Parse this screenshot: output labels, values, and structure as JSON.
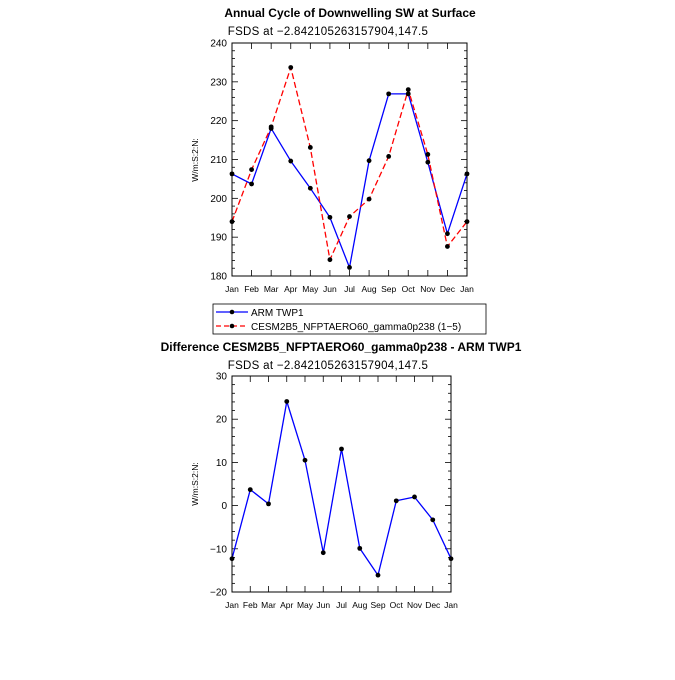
{
  "chart_data": [
    {
      "type": "line",
      "title": "Annual Cycle of Downwelling SW at Surface",
      "subtitle": "FSDS at −2.842105263157904,147.5",
      "ylabel": "W/m:S:2:N:",
      "categories": [
        "Jan",
        "Feb",
        "Mar",
        "Apr",
        "May",
        "Jun",
        "Jul",
        "Aug",
        "Sep",
        "Oct",
        "Nov",
        "Dec",
        "Jan"
      ],
      "ylim": [
        180,
        240
      ],
      "yticks": [
        180,
        190,
        200,
        210,
        220,
        230,
        240
      ],
      "legend_placement": "below",
      "series": [
        {
          "name": "ARM TWP1",
          "color": "#0000ff",
          "dash": "solid",
          "values": [
            206.3,
            203.7,
            218.0,
            209.6,
            202.6,
            195.1,
            182.2,
            209.7,
            226.9,
            226.9,
            209.3,
            190.9,
            206.3
          ]
        },
        {
          "name": "CESM2B5_NFPTAERO60_gamma0p238 (1−5)",
          "color": "#ff0000",
          "dash": "dashed",
          "values": [
            194.0,
            207.4,
            218.4,
            233.7,
            213.1,
            184.2,
            195.3,
            199.8,
            210.8,
            228.0,
            211.3,
            187.6,
            194.0
          ]
        }
      ]
    },
    {
      "type": "line",
      "title": "Difference CESM2B5_NFPTAERO60_gamma0p238 - ARM TWP1",
      "subtitle": "FSDS at −2.842105263157904,147.5",
      "ylabel": "W/m:S:2:N:",
      "categories": [
        "Jan",
        "Feb",
        "Mar",
        "Apr",
        "May",
        "Jun",
        "Jul",
        "Aug",
        "Sep",
        "Oct",
        "Nov",
        "Dec",
        "Jan"
      ],
      "ylim": [
        -20,
        30
      ],
      "yticks": [
        -20,
        -10,
        0,
        10,
        20,
        30
      ],
      "ytick_labels": [
        "−20",
        "−10",
        "0",
        "10",
        "20",
        "30"
      ],
      "series": [
        {
          "color": "#0000ff",
          "dash": "solid",
          "values": [
            -12.3,
            3.7,
            0.4,
            24.1,
            10.5,
            -10.9,
            13.1,
            -9.9,
            -16.1,
            1.1,
            2.0,
            -3.3,
            -12.3
          ]
        }
      ]
    }
  ]
}
